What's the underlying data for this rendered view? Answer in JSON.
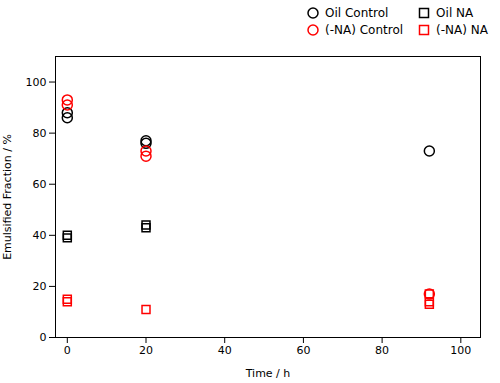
{
  "chart_data": {
    "type": "scatter",
    "xlabel": "Time / h",
    "ylabel": "Emulsified Fraction / %",
    "series": [
      {
        "name": "Oil Control",
        "color": "black",
        "marker": "circle",
        "x": [
          0,
          0,
          20,
          20,
          92
        ],
        "values": [
          86,
          88,
          76,
          77,
          73
        ]
      },
      {
        "name": "Oil NA",
        "color": "black",
        "marker": "square",
        "x": [
          0,
          0,
          20,
          20
        ],
        "values": [
          39,
          40,
          43,
          44
        ]
      },
      {
        "name": "(-NA) Control",
        "color": "red",
        "marker": "circle",
        "x": [
          0,
          0,
          20,
          20,
          92
        ],
        "values": [
          91,
          93,
          71,
          73,
          17
        ]
      },
      {
        "name": "(-NA) NA",
        "color": "red",
        "marker": "square",
        "x": [
          0,
          0,
          20,
          92,
          92,
          92
        ],
        "values": [
          14,
          15,
          11,
          13,
          14,
          17
        ]
      }
    ],
    "xlim": [
      -3,
      105
    ],
    "ylim": [
      0,
      110
    ],
    "xticks": [
      0,
      20,
      40,
      60,
      80,
      100
    ],
    "yticks": [
      0,
      20,
      40,
      60,
      80,
      100
    ],
    "legend": "upper right",
    "grid": false
  }
}
